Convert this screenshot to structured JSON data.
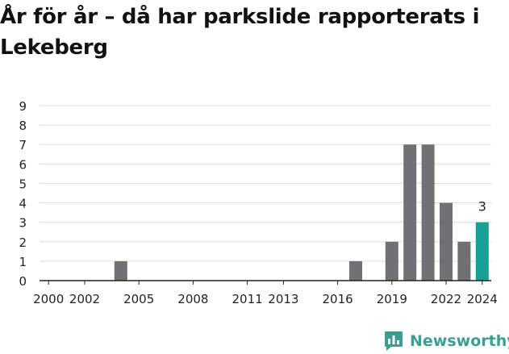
{
  "title": "År för år – då har parkslide rapporterats i Lekeberg",
  "brand": {
    "name": "Newsworthy",
    "icon": "newsworthy-logo-icon",
    "color": "#3a9e92"
  },
  "chart_data": {
    "type": "bar",
    "title": "År för år – då har parkslide rapporterats i Lekeberg",
    "xlabel": "",
    "ylabel": "",
    "categories": [
      "2000",
      "2001",
      "2002",
      "2003",
      "2004",
      "2005",
      "2006",
      "2007",
      "2008",
      "2009",
      "2010",
      "2011",
      "2012",
      "2013",
      "2014",
      "2015",
      "2016",
      "2017",
      "2018",
      "2019",
      "2020",
      "2021",
      "2022",
      "2023",
      "2024"
    ],
    "values": [
      0,
      0,
      0,
      0,
      1,
      0,
      0,
      0,
      0,
      0,
      0,
      0,
      0,
      0,
      0,
      0,
      0,
      1,
      0,
      2,
      7,
      7,
      4,
      2,
      3
    ],
    "x_tick_labels": [
      "2000",
      "2002",
      "2005",
      "2008",
      "2011",
      "2013",
      "2016",
      "2019",
      "2022",
      "2024"
    ],
    "y_ticks": [
      "0",
      "1",
      "2",
      "3",
      "4",
      "5",
      "6",
      "7",
      "8",
      "9"
    ],
    "ylim": [
      0,
      9
    ],
    "grid": true,
    "legend": "none",
    "annotations": [
      {
        "category": "2024",
        "text": "3"
      }
    ],
    "highlight_category": "2024",
    "colors": {
      "bar": "#717075",
      "highlight": "#17a096",
      "grid": "#dddddd",
      "baseline": "#222222",
      "text": "#222222"
    }
  }
}
